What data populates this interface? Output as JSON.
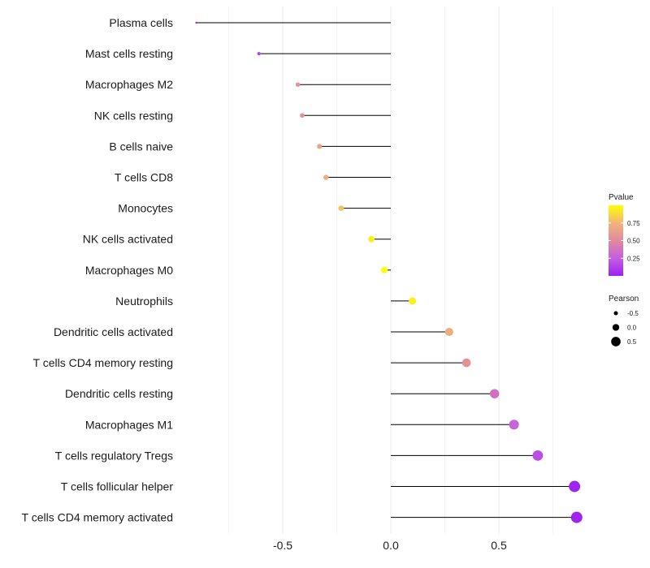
{
  "chart_data": {
    "type": "lollipop",
    "title": "",
    "xlabel": "",
    "ylabel": "",
    "xlim": [
      -1.0,
      0.9
    ],
    "x_ticks": [
      {
        "value": -0.5,
        "label": "-0.5"
      },
      {
        "value": 0.0,
        "label": "0.0"
      },
      {
        "value": 0.5,
        "label": "0.5"
      }
    ],
    "grid": true,
    "categories": [
      "Plasma cells",
      "Mast cells resting",
      "Macrophages M2",
      "NK cells resting",
      "B cells naive",
      "T cells CD8",
      "Monocytes",
      "NK cells activated",
      "Macrophages M0",
      "Neutrophils",
      "Dendritic cells activated",
      "T cells CD4 memory resting",
      "Dendritic cells resting",
      "Macrophages M1",
      "T cells regulatory  Tregs",
      "T cells follicular helper",
      "T cells CD4 memory activated"
    ],
    "values": [
      -0.9,
      -0.61,
      -0.43,
      -0.41,
      -0.33,
      -0.3,
      -0.23,
      -0.09,
      -0.03,
      0.1,
      0.27,
      0.35,
      0.48,
      0.57,
      0.68,
      0.85,
      0.86
    ],
    "pvalues": [
      0.0,
      0.15,
      0.55,
      0.55,
      0.65,
      0.7,
      0.8,
      0.95,
      1.0,
      0.95,
      0.7,
      0.55,
      0.35,
      0.28,
      0.18,
      0.01,
      0.01
    ],
    "legend": {
      "color": {
        "title": "Pvalue",
        "ticks": [
          {
            "value": 0.75,
            "label": "0.75"
          },
          {
            "value": 0.5,
            "label": "0.50"
          },
          {
            "value": 0.25,
            "label": "0.25"
          }
        ],
        "range": [
          0.0,
          1.0
        ],
        "gradient": [
          "#a020f0",
          "#c45fe0",
          "#e08a9c",
          "#f2b47a",
          "#ffff00"
        ]
      },
      "size": {
        "title": "Pearson",
        "entries": [
          {
            "value": -0.5,
            "label": "-0.5"
          },
          {
            "value": 0.0,
            "label": "0.0"
          },
          {
            "value": 0.5,
            "label": "0.5"
          }
        ]
      },
      "position": "right"
    }
  }
}
